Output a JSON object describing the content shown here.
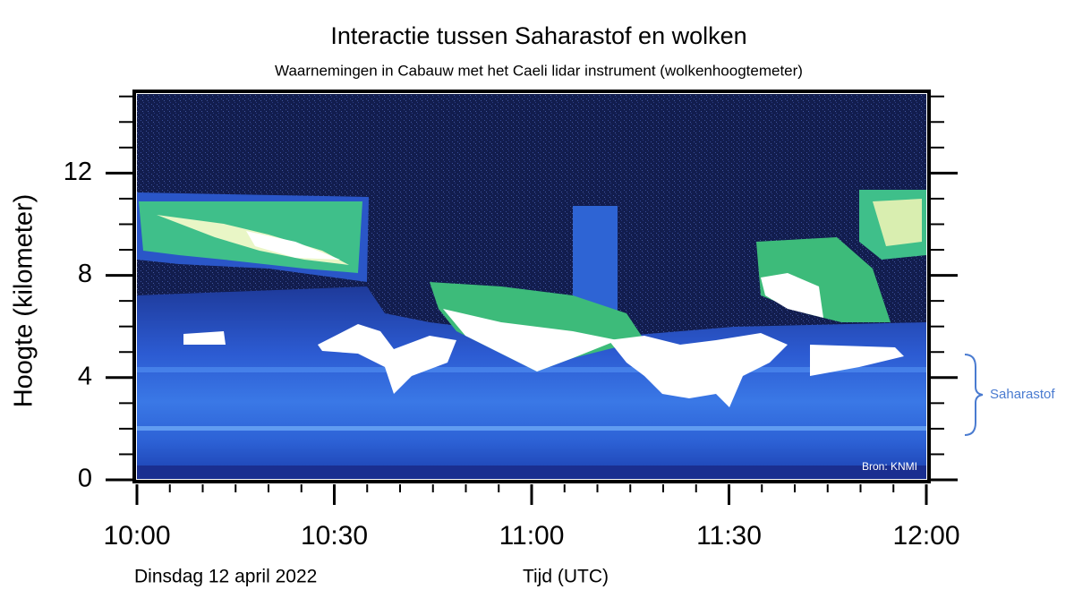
{
  "chart_data": {
    "type": "heatmap",
    "title": "Interactie tussen Saharastof en wolken",
    "subtitle": "Waarnemingen in Cabauw met het Caeli lidar instrument (wolkenhoogtemeter)",
    "ylabel": "Hoogte (kilometer)",
    "xlabel": "Tijd (UTC)",
    "date_label": "Dinsdag 12 april 2022",
    "annotation": "Saharastof",
    "source": "Bron: KNMI",
    "ylim": [
      0,
      15.2
    ],
    "yticks": [
      0,
      4,
      8,
      12
    ],
    "xlim": [
      0,
      120
    ],
    "xticks": [
      {
        "value": 0,
        "label": "10:00"
      },
      {
        "value": 30,
        "label": "10:30"
      },
      {
        "value": 60,
        "label": "11:00"
      },
      {
        "value": 90,
        "label": "11:30"
      },
      {
        "value": 120,
        "label": "12:00"
      }
    ]
  }
}
